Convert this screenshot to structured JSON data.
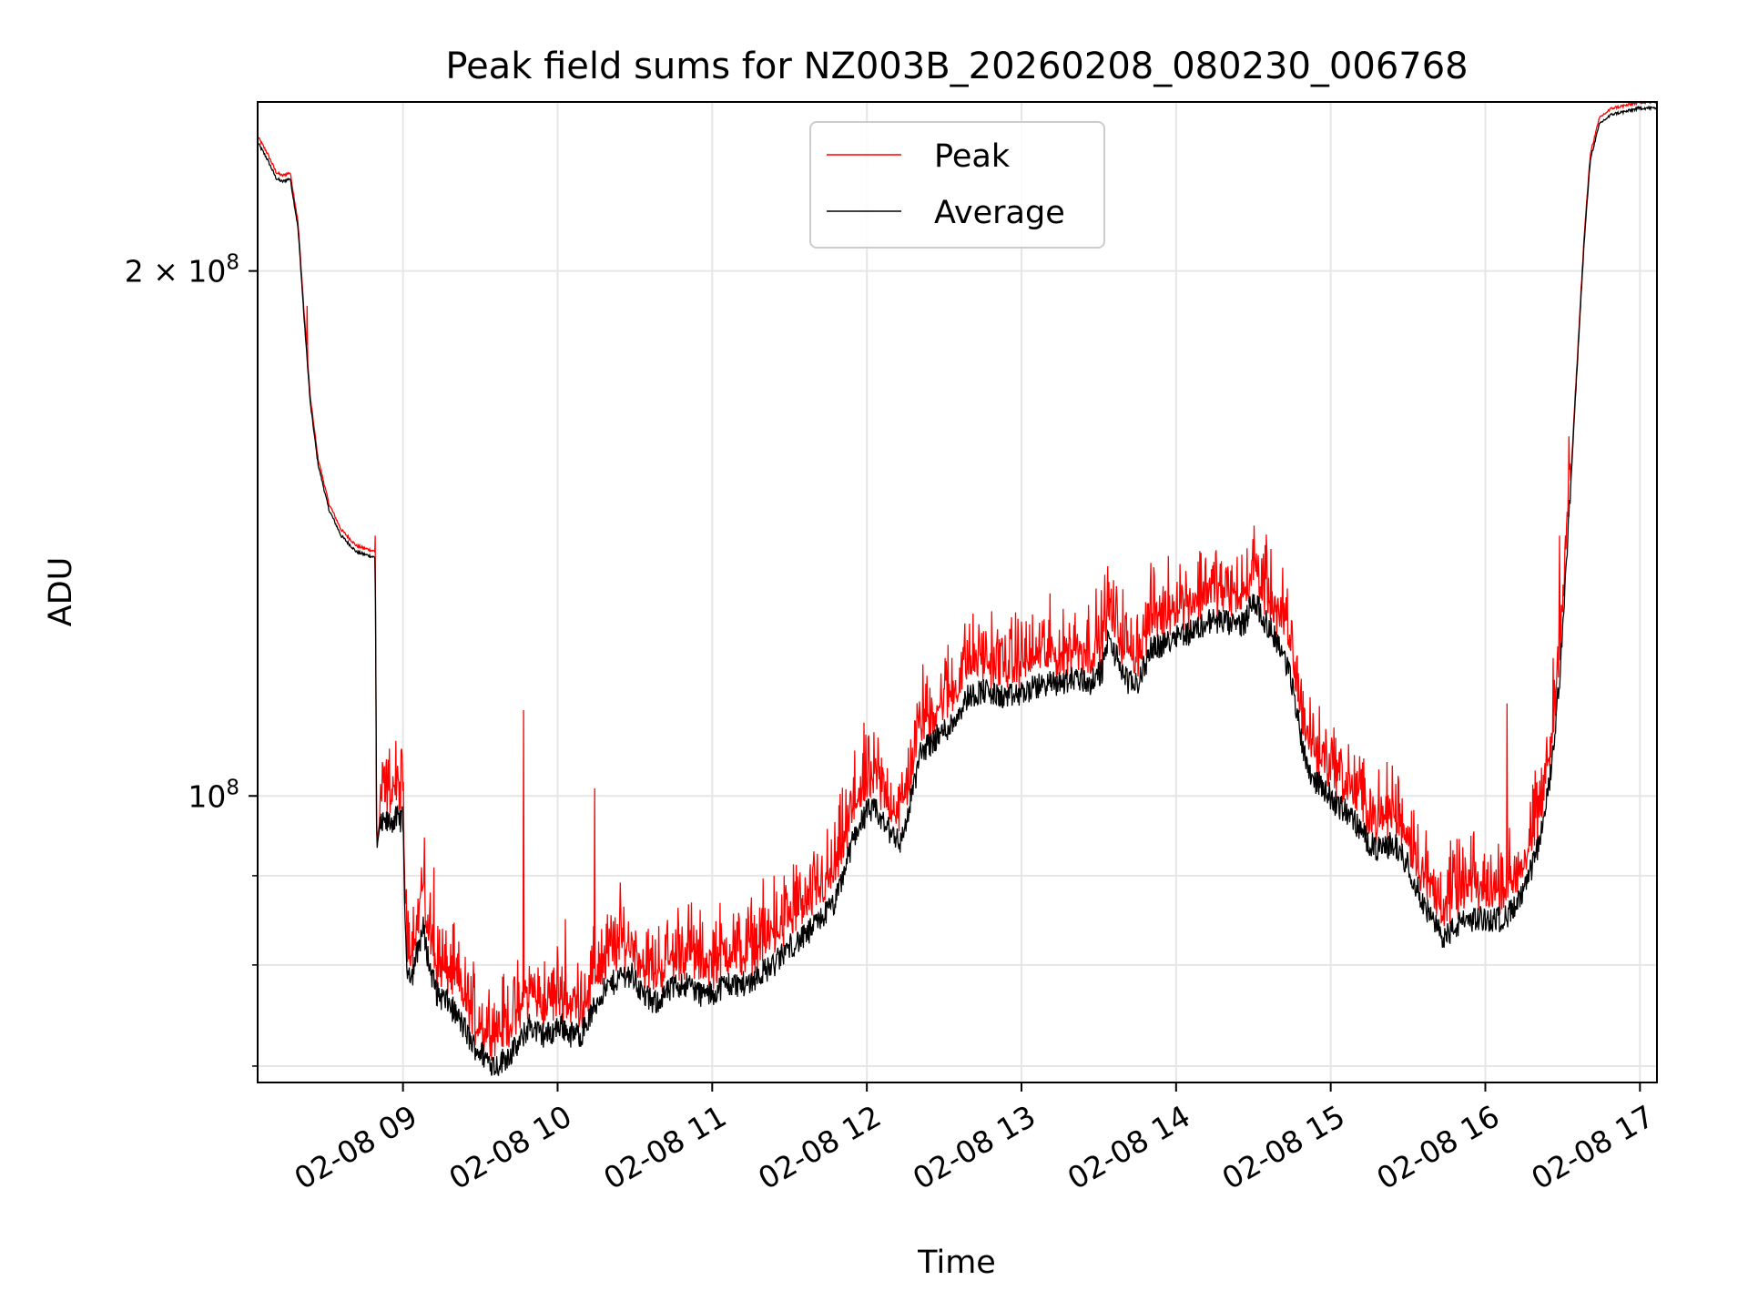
{
  "chart_data": {
    "type": "line",
    "title": "Peak field sums for NZ003B_20260208_080230_006768",
    "xlabel": "Time",
    "ylabel": "ADU",
    "yscale": "log",
    "ylim": [
      68500000,
      250000000
    ],
    "xlim_hours": [
      8.06,
      17.11
    ],
    "grid": true,
    "legend_placement": "top-center",
    "x_ticks": [
      {
        "hour": 9,
        "label": "02-08 09"
      },
      {
        "hour": 10,
        "label": "02-08 10"
      },
      {
        "hour": 11,
        "label": "02-08 11"
      },
      {
        "hour": 12,
        "label": "02-08 12"
      },
      {
        "hour": 13,
        "label": "02-08 13"
      },
      {
        "hour": 14,
        "label": "02-08 14"
      },
      {
        "hour": 15,
        "label": "02-08 15"
      },
      {
        "hour": 16,
        "label": "02-08 16"
      },
      {
        "hour": 17,
        "label": "02-08 17"
      }
    ],
    "y_major_ticks": [
      {
        "value": 100000000,
        "base": "10",
        "exp": "8"
      },
      {
        "value": 200000000,
        "base": "2 × 10",
        "exp": "8"
      }
    ],
    "y_minor_ticks": [
      70000000,
      80000000,
      90000000
    ],
    "series": [
      {
        "name": "Average",
        "color": "#000000",
        "points": [
          [
            8.06,
            237000000
          ],
          [
            8.12,
            232000000
          ],
          [
            8.18,
            226000000
          ],
          [
            8.22,
            225000000
          ],
          [
            8.27,
            226000000
          ],
          [
            8.32,
            212000000
          ],
          [
            8.36,
            188000000
          ],
          [
            8.4,
            168000000
          ],
          [
            8.45,
            155000000
          ],
          [
            8.52,
            146000000
          ],
          [
            8.6,
            141000000
          ],
          [
            8.7,
            138000000
          ],
          [
            8.82,
            137000000
          ],
          [
            8.83,
            93000000
          ],
          [
            8.85,
            96000000
          ],
          [
            8.95,
            97000000
          ],
          [
            9.0,
            97000000
          ],
          [
            9.02,
            80000000
          ],
          [
            9.06,
            79000000
          ],
          [
            9.1,
            82000000
          ],
          [
            9.13,
            84000000
          ],
          [
            9.17,
            80000000
          ],
          [
            9.22,
            77000000
          ],
          [
            9.3,
            76000000
          ],
          [
            9.38,
            74000000
          ],
          [
            9.45,
            72000000
          ],
          [
            9.52,
            71000000
          ],
          [
            9.6,
            70000000
          ],
          [
            9.68,
            71000000
          ],
          [
            9.75,
            72000000
          ],
          [
            9.82,
            74000000
          ],
          [
            9.88,
            73000000
          ],
          [
            9.95,
            73000000
          ],
          [
            10.02,
            74000000
          ],
          [
            10.08,
            73000000
          ],
          [
            10.15,
            73000000
          ],
          [
            10.22,
            75000000
          ],
          [
            10.28,
            77000000
          ],
          [
            10.35,
            78000000
          ],
          [
            10.42,
            79000000
          ],
          [
            10.48,
            79000000
          ],
          [
            10.55,
            77000000
          ],
          [
            10.62,
            76000000
          ],
          [
            10.7,
            77000000
          ],
          [
            10.78,
            78000000
          ],
          [
            10.85,
            78000000
          ],
          [
            10.92,
            77000000
          ],
          [
            11.0,
            77000000
          ],
          [
            11.08,
            78000000
          ],
          [
            11.15,
            78000000
          ],
          [
            11.22,
            78000000
          ],
          [
            11.3,
            79000000
          ],
          [
            11.4,
            80000000
          ],
          [
            11.5,
            82000000
          ],
          [
            11.6,
            83000000
          ],
          [
            11.7,
            85000000
          ],
          [
            11.8,
            87000000
          ],
          [
            11.86,
            91000000
          ],
          [
            11.92,
            95000000
          ],
          [
            12.0,
            98000000
          ],
          [
            12.06,
            98000000
          ],
          [
            12.12,
            96000000
          ],
          [
            12.18,
            95000000
          ],
          [
            12.22,
            94000000
          ],
          [
            12.26,
            97000000
          ],
          [
            12.3,
            101000000
          ],
          [
            12.35,
            106000000
          ],
          [
            12.45,
            108000000
          ],
          [
            12.55,
            110000000
          ],
          [
            12.65,
            114000000
          ],
          [
            12.75,
            115000000
          ],
          [
            12.85,
            114000000
          ],
          [
            12.95,
            114000000
          ],
          [
            13.05,
            115000000
          ],
          [
            13.15,
            116000000
          ],
          [
            13.25,
            116000000
          ],
          [
            13.35,
            117000000
          ],
          [
            13.45,
            116000000
          ],
          [
            13.52,
            118000000
          ],
          [
            13.56,
            123000000
          ],
          [
            13.6,
            121000000
          ],
          [
            13.65,
            118000000
          ],
          [
            13.7,
            116000000
          ],
          [
            13.75,
            116000000
          ],
          [
            13.8,
            119000000
          ],
          [
            13.85,
            122000000
          ],
          [
            13.92,
            122000000
          ],
          [
            14.0,
            124000000
          ],
          [
            14.08,
            124000000
          ],
          [
            14.15,
            125000000
          ],
          [
            14.22,
            126000000
          ],
          [
            14.3,
            126000000
          ],
          [
            14.38,
            125000000
          ],
          [
            14.45,
            126000000
          ],
          [
            14.5,
            130000000
          ],
          [
            14.55,
            127000000
          ],
          [
            14.6,
            125000000
          ],
          [
            14.65,
            123000000
          ],
          [
            14.7,
            120000000
          ],
          [
            14.75,
            116000000
          ],
          [
            14.8,
            109000000
          ],
          [
            14.85,
            104000000
          ],
          [
            14.9,
            102000000
          ],
          [
            14.96,
            101000000
          ],
          [
            15.03,
            99000000
          ],
          [
            15.1,
            98000000
          ],
          [
            15.18,
            96000000
          ],
          [
            15.25,
            94000000
          ],
          [
            15.32,
            93000000
          ],
          [
            15.4,
            94000000
          ],
          [
            15.48,
            92000000
          ],
          [
            15.55,
            89000000
          ],
          [
            15.62,
            86000000
          ],
          [
            15.68,
            84000000
          ],
          [
            15.74,
            83000000
          ],
          [
            15.8,
            84000000
          ],
          [
            15.88,
            85000000
          ],
          [
            15.96,
            85000000
          ],
          [
            16.03,
            85000000
          ],
          [
            16.1,
            85000000
          ],
          [
            16.18,
            86000000
          ],
          [
            16.25,
            88000000
          ],
          [
            16.32,
            92000000
          ],
          [
            16.38,
            97000000
          ],
          [
            16.43,
            104000000
          ],
          [
            16.48,
            117000000
          ],
          [
            16.52,
            133000000
          ],
          [
            16.56,
            155000000
          ],
          [
            16.6,
            180000000
          ],
          [
            16.64,
            208000000
          ],
          [
            16.68,
            232000000
          ],
          [
            16.74,
            243000000
          ],
          [
            16.82,
            246000000
          ],
          [
            16.92,
            247000000
          ],
          [
            17.0,
            248000000
          ],
          [
            17.11,
            248000000
          ]
        ]
      },
      {
        "name": "Peak",
        "color": "#ff0000",
        "note": "closely follows Average with upward noise spikes",
        "spikes": [
          [
            8.38,
            191000000
          ],
          [
            8.82,
            141000000
          ],
          [
            8.88,
            104000000
          ],
          [
            9.12,
            91000000
          ],
          [
            9.2,
            91000000
          ],
          [
            9.78,
            112000000
          ],
          [
            10.05,
            85000000
          ],
          [
            10.24,
            101000000
          ],
          [
            10.4,
            84000000
          ],
          [
            11.4,
            90000000
          ],
          [
            11.95,
            101000000
          ],
          [
            12.55,
            120000000
          ],
          [
            13.27,
            128000000
          ],
          [
            14.5,
            133000000
          ],
          [
            15.03,
            104000000
          ],
          [
            15.45,
            96000000
          ],
          [
            16.14,
            113000000
          ],
          [
            16.48,
            141000000
          ]
        ]
      }
    ]
  }
}
